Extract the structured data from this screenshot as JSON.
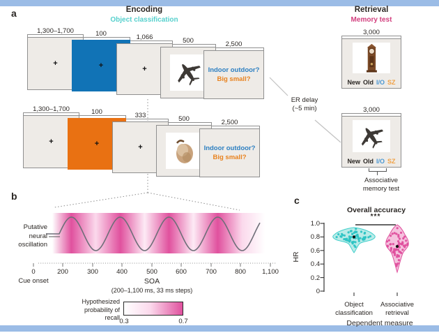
{
  "figure": {
    "panel_a_label": "a",
    "panel_b_label": "b",
    "panel_c_label": "c"
  },
  "encoding": {
    "title": "Encoding",
    "subtitle": "Object classification",
    "fixation": "+",
    "rows": [
      {
        "durations": {
          "d1": "1,300–1,700",
          "d2": "100",
          "d3": "1,066",
          "d4": "500",
          "d5": "2,500"
        },
        "question_line1": "Indoor outdoor?",
        "question_line2": "Big small?"
      },
      {
        "durations": {
          "d1": "1,300–1,700",
          "d2": "100",
          "d3": "333",
          "d4": "500",
          "d5": "2,500"
        },
        "question_line1": "Indoor outdoor?",
        "question_line2": "Big small?"
      }
    ]
  },
  "retrieval": {
    "title": "Retrieval",
    "subtitle": "Memory test",
    "trial_duration": "3,000",
    "responses": [
      "New",
      "Old",
      "I/O",
      "SZ"
    ],
    "er_delay_line1": "ER delay",
    "er_delay_line2": "(~5 min)",
    "assoc_line1": "Associative",
    "assoc_line2": "memory test"
  },
  "oscillation": {
    "label_line1": "Putative",
    "label_line2": "neural",
    "label_line3": "oscillation",
    "x_ticks": [
      "0",
      "200",
      "300",
      "400",
      "500",
      "600",
      "700",
      "800",
      "1,100"
    ],
    "x_origin_label": "Cue onset",
    "x_axis_label": "SOA",
    "x_axis_note": "(200–1,100 ms, 33 ms steps)",
    "colorbar_label_line1": "Hypothesized",
    "colorbar_label_line2": "probability of",
    "colorbar_label_line3": "recall",
    "colorbar_min": "0.3",
    "colorbar_max": "0.7"
  },
  "accuracy": {
    "title": "Overall accuracy",
    "sig": "***",
    "ylabel": "HR",
    "yticks": [
      "1.0",
      "0.8",
      "0.6",
      "0.4",
      "0.2",
      "0"
    ],
    "xlabel": "Dependent measure",
    "cat1_line1": "Object",
    "cat1_line2": "classification",
    "cat2_line1": "Associative",
    "cat2_line2": "retrieval"
  },
  "colors": {
    "frame_bar": "#9bbce6",
    "panel_box_bg": "#eeebe7",
    "panel_box_border": "#8f8f8f",
    "cue_blue": "#1173b6",
    "cue_orange": "#e97112",
    "question_blue": "#2d7fc1",
    "question_orange": "#e8821e",
    "encoding_subtitle": "#56d0cd",
    "retrieval_subtitle": "#d23f7e",
    "response_io": "#4a97d2",
    "response_sz": "#f0a145",
    "oscillation_pink": "#e0519e",
    "wave_gray": "#6e6e78",
    "violin_cyan_fill": "#a9e6e2",
    "violin_cyan_stroke": "#3ecfcb",
    "violin_pink_fill": "#f3b3d6",
    "violin_pink_stroke": "#e0519e",
    "text": "#2a2623"
  },
  "chart_data": [
    {
      "type": "line",
      "title": "Putative neural oscillation",
      "xlabel": "SOA (200–1,100 ms, 33 ms steps)",
      "x_ticks": [
        0,
        200,
        300,
        400,
        500,
        600,
        700,
        800,
        1100
      ],
      "x_origin": "Cue onset",
      "y_concept": "Hypothesized probability of recall",
      "y_range": [
        0.3,
        0.7
      ],
      "description": "Sinusoidal oscillation of hypothesized recall probability over SOA; four full cycles between ~200 and ~850 ms, shading intensity follows sine peaks (0.7) and troughs (0.3)",
      "colorbar": {
        "min": 0.3,
        "max": 0.7,
        "color_low": "#ffffff",
        "color_high": "#e0519e"
      }
    },
    {
      "type": "violin",
      "title": "Overall accuracy",
      "xlabel": "Dependent measure",
      "ylabel": "HR",
      "ylim": [
        0,
        1.0
      ],
      "yticks": [
        0,
        0.2,
        0.4,
        0.6,
        0.8,
        1.0
      ],
      "categories": [
        "Object classification",
        "Associative retrieval"
      ],
      "series": [
        {
          "name": "Object classification",
          "mean": 0.8,
          "sd": 0.055,
          "range": [
            0.55,
            0.92
          ],
          "color": "#2cc4c4",
          "n_points": 60
        },
        {
          "name": "Associative retrieval",
          "mean": 0.66,
          "sd": 0.12,
          "range": [
            0.33,
            0.93
          ],
          "color": "#df4f9d",
          "n_points": 60
        }
      ],
      "significance": "***",
      "legend": "none"
    }
  ]
}
